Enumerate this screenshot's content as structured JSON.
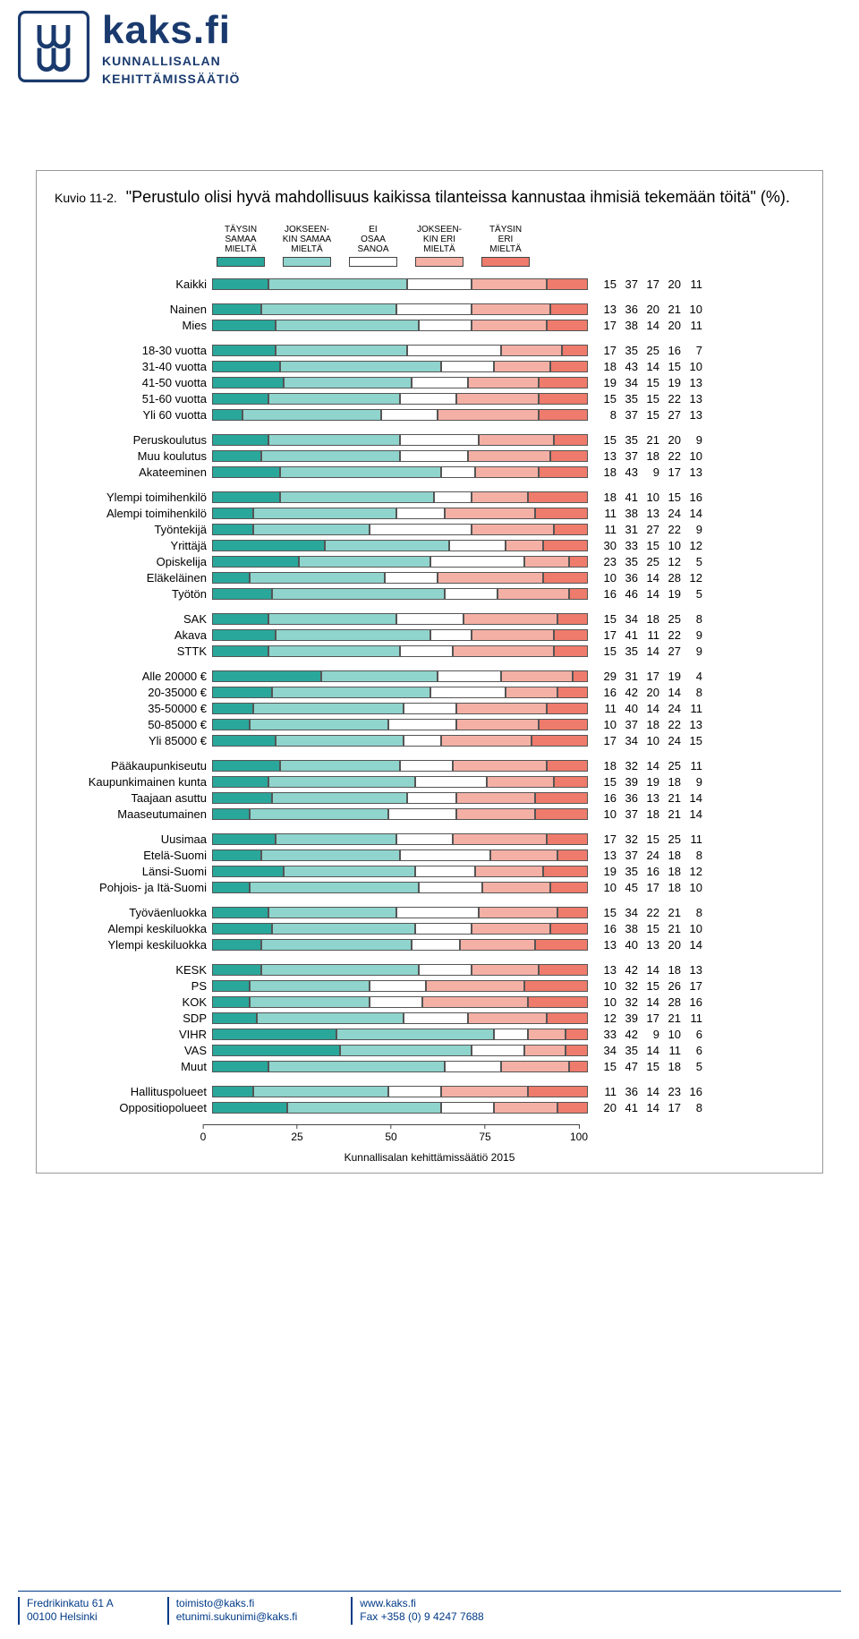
{
  "brand": {
    "main": "kaks.fi",
    "sub1": "KUNNALLISALAN",
    "sub2": "KEHITTÄMISSÄÄTIÖ"
  },
  "colors": {
    "c1": "#2aa79b",
    "c2": "#8fd4cd",
    "c3": "#ffffff",
    "c4": "#f5b0a5",
    "c5": "#ee7b6c",
    "border": "#555555",
    "text": "#000000"
  },
  "chart": {
    "code": "Kuvio 11-2.",
    "title": "\"Perustulo olisi hyvä mahdollisuus kaikissa tilanteissa kannustaa ihmisiä tekemään töitä\" (%).",
    "legend": [
      {
        "label": "TÄYSIN\nSAMAA\nMIELTÄ",
        "color": "c1"
      },
      {
        "label": "JOKSEEN-\nKIN SAMAA\nMIELTÄ",
        "color": "c2"
      },
      {
        "label": "EI\nOSAA\nSANOA",
        "color": "c3"
      },
      {
        "label": "JOKSEEN-\nKIN ERI\nMIELTÄ",
        "color": "c4"
      },
      {
        "label": "TÄYSIN\nERI\nMIELTÄ",
        "color": "c5"
      }
    ],
    "axis_ticks": [
      0,
      25,
      50,
      75,
      100
    ],
    "source": "Kunnallisalan kehittämissäätiö 2015",
    "groups": [
      [
        {
          "label": "Kaikki",
          "v": [
            15,
            37,
            17,
            20,
            11
          ]
        }
      ],
      [
        {
          "label": "Nainen",
          "v": [
            13,
            36,
            20,
            21,
            10
          ]
        },
        {
          "label": "Mies",
          "v": [
            17,
            38,
            14,
            20,
            11
          ]
        }
      ],
      [
        {
          "label": "18-30 vuotta",
          "v": [
            17,
            35,
            25,
            16,
            7
          ]
        },
        {
          "label": "31-40 vuotta",
          "v": [
            18,
            43,
            14,
            15,
            10
          ]
        },
        {
          "label": "41-50 vuotta",
          "v": [
            19,
            34,
            15,
            19,
            13
          ]
        },
        {
          "label": "51-60 vuotta",
          "v": [
            15,
            35,
            15,
            22,
            13
          ]
        },
        {
          "label": "Yli 60 vuotta",
          "v": [
            8,
            37,
            15,
            27,
            13
          ]
        }
      ],
      [
        {
          "label": "Peruskoulutus",
          "v": [
            15,
            35,
            21,
            20,
            9
          ]
        },
        {
          "label": "Muu koulutus",
          "v": [
            13,
            37,
            18,
            22,
            10
          ]
        },
        {
          "label": "Akateeminen",
          "v": [
            18,
            43,
            9,
            17,
            13
          ]
        }
      ],
      [
        {
          "label": "Ylempi toimihenkilö",
          "v": [
            18,
            41,
            10,
            15,
            16
          ]
        },
        {
          "label": "Alempi toimihenkilö",
          "v": [
            11,
            38,
            13,
            24,
            14
          ]
        },
        {
          "label": "Työntekijä",
          "v": [
            11,
            31,
            27,
            22,
            9
          ]
        },
        {
          "label": "Yrittäjä",
          "v": [
            30,
            33,
            15,
            10,
            12
          ]
        },
        {
          "label": "Opiskelija",
          "v": [
            23,
            35,
            25,
            12,
            5
          ]
        },
        {
          "label": "Eläkeläinen",
          "v": [
            10,
            36,
            14,
            28,
            12
          ]
        },
        {
          "label": "Työtön",
          "v": [
            16,
            46,
            14,
            19,
            5
          ]
        }
      ],
      [
        {
          "label": "SAK",
          "v": [
            15,
            34,
            18,
            25,
            8
          ]
        },
        {
          "label": "Akava",
          "v": [
            17,
            41,
            11,
            22,
            9
          ]
        },
        {
          "label": "STTK",
          "v": [
            15,
            35,
            14,
            27,
            9
          ]
        }
      ],
      [
        {
          "label": "Alle 20000 €",
          "v": [
            29,
            31,
            17,
            19,
            4
          ]
        },
        {
          "label": "20-35000 €",
          "v": [
            16,
            42,
            20,
            14,
            8
          ]
        },
        {
          "label": "35-50000 €",
          "v": [
            11,
            40,
            14,
            24,
            11
          ]
        },
        {
          "label": "50-85000 €",
          "v": [
            10,
            37,
            18,
            22,
            13
          ]
        },
        {
          "label": "Yli 85000 €",
          "v": [
            17,
            34,
            10,
            24,
            15
          ]
        }
      ],
      [
        {
          "label": "Pääkaupunkiseutu",
          "v": [
            18,
            32,
            14,
            25,
            11
          ]
        },
        {
          "label": "Kaupunkimainen kunta",
          "v": [
            15,
            39,
            19,
            18,
            9
          ]
        },
        {
          "label": "Taajaan asuttu",
          "v": [
            16,
            36,
            13,
            21,
            14
          ]
        },
        {
          "label": "Maaseutumainen",
          "v": [
            10,
            37,
            18,
            21,
            14
          ]
        }
      ],
      [
        {
          "label": "Uusimaa",
          "v": [
            17,
            32,
            15,
            25,
            11
          ]
        },
        {
          "label": "Etelä-Suomi",
          "v": [
            13,
            37,
            24,
            18,
            8
          ]
        },
        {
          "label": "Länsi-Suomi",
          "v": [
            19,
            35,
            16,
            18,
            12
          ]
        },
        {
          "label": "Pohjois- ja Itä-Suomi",
          "v": [
            10,
            45,
            17,
            18,
            10
          ]
        }
      ],
      [
        {
          "label": "Työväenluokka",
          "v": [
            15,
            34,
            22,
            21,
            8
          ]
        },
        {
          "label": "Alempi keskiluokka",
          "v": [
            16,
            38,
            15,
            21,
            10
          ]
        },
        {
          "label": "Ylempi keskiluokka",
          "v": [
            13,
            40,
            13,
            20,
            14
          ]
        }
      ],
      [
        {
          "label": "KESK",
          "v": [
            13,
            42,
            14,
            18,
            13
          ]
        },
        {
          "label": "PS",
          "v": [
            10,
            32,
            15,
            26,
            17
          ]
        },
        {
          "label": "KOK",
          "v": [
            10,
            32,
            14,
            28,
            16
          ]
        },
        {
          "label": "SDP",
          "v": [
            12,
            39,
            17,
            21,
            11
          ]
        },
        {
          "label": "VIHR",
          "v": [
            33,
            42,
            9,
            10,
            6
          ]
        },
        {
          "label": "VAS",
          "v": [
            34,
            35,
            14,
            11,
            6
          ]
        },
        {
          "label": "Muut",
          "v": [
            15,
            47,
            15,
            18,
            5
          ]
        }
      ],
      [
        {
          "label": "Hallituspolueet",
          "v": [
            11,
            36,
            14,
            23,
            16
          ]
        },
        {
          "label": "Oppositiopolueet",
          "v": [
            20,
            41,
            14,
            17,
            8
          ]
        }
      ]
    ]
  },
  "footer": {
    "col1a": "Fredrikinkatu 61 A",
    "col1b": "00100 Helsinki",
    "col2a": "toimisto@kaks.fi",
    "col2b": "etunimi.sukunimi@kaks.fi",
    "col3a": "www.kaks.fi",
    "col3b": "Fax +358 (0) 9 4247 7688"
  }
}
